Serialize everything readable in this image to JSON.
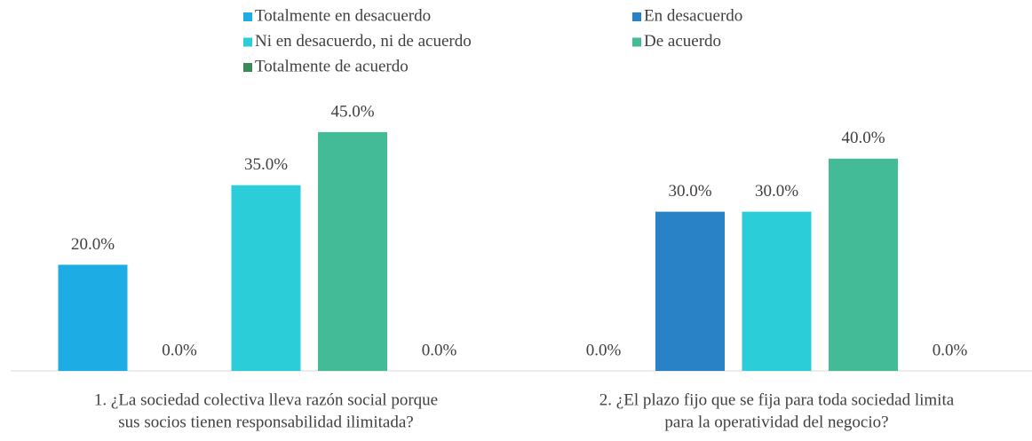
{
  "chart_data": {
    "type": "bar",
    "categories": [
      [
        "1. ¿La sociedad colectiva lleva razón social porque",
        "sus socios tienen responsabilidad ilimitada?"
      ],
      [
        "2. ¿El plazo fijo que se fija para toda sociedad limita",
        "para la operatividad del negocio?"
      ]
    ],
    "series": [
      {
        "name": "Totalmente en desacuerdo",
        "color": "#1eace4",
        "values": [
          20,
          0
        ],
        "value_labels": [
          "20.0%",
          "0.0%"
        ]
      },
      {
        "name": "En desacuerdo",
        "color": "#2a82c6",
        "values": [
          0,
          30
        ],
        "value_labels": [
          "0.0%",
          "30.0%"
        ]
      },
      {
        "name": "Ni en desacuerdo, ni de acuerdo",
        "color": "#2bcdd8",
        "values": [
          35,
          30
        ],
        "value_labels": [
          "35.0%",
          "30.0%"
        ]
      },
      {
        "name": "De acuerdo",
        "color": "#44bb97",
        "values": [
          45,
          40
        ],
        "value_labels": [
          "45.0%",
          "40.0%"
        ]
      },
      {
        "name": "Totalmente de acuerdo",
        "color": "#3a8a57",
        "values": [
          0,
          0
        ],
        "value_labels": [
          "0.0%",
          "0.0%"
        ]
      }
    ],
    "ylim": [
      0,
      50
    ],
    "legend": "top"
  }
}
